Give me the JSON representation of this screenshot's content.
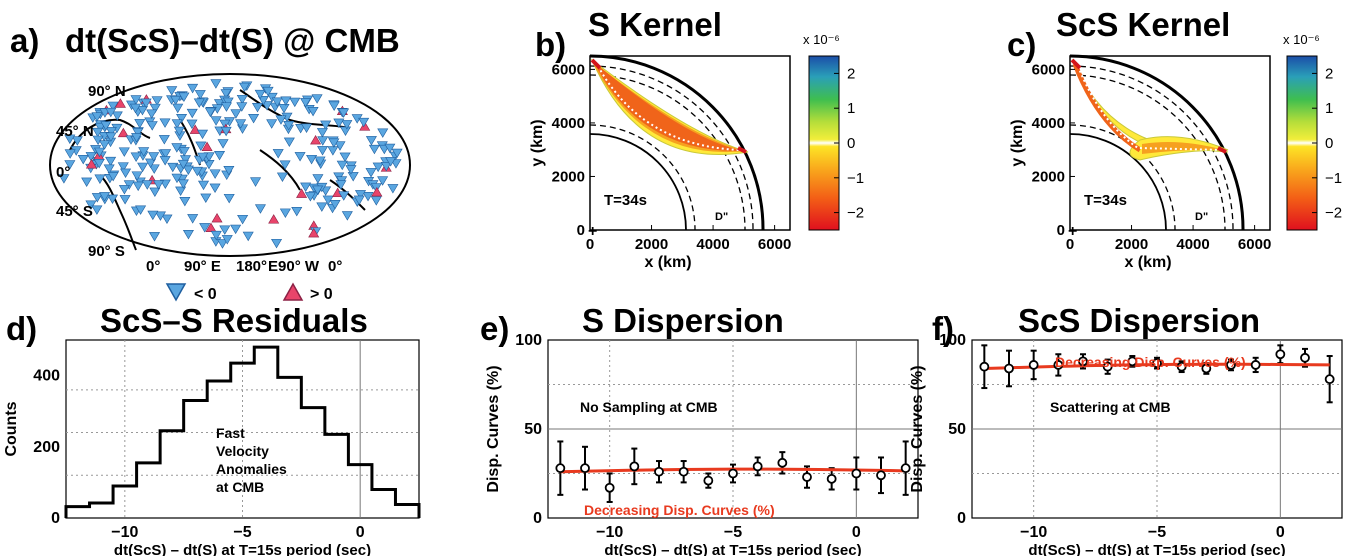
{
  "panels": {
    "a": {
      "letter": "a)",
      "title": "dt(ScS)–dt(S) @ CMB",
      "lat_labels": [
        "90° N",
        "45° N",
        "0°",
        "45° S",
        "90° S"
      ],
      "lon_labels": [
        "0°",
        "90° E",
        "180°",
        "E90° W",
        "0°"
      ],
      "legend_neg": "< 0",
      "legend_pos": "> 0"
    },
    "b": {
      "letter": "b)",
      "title": "S Kernel",
      "period_label": "T=34s",
      "layer_label": "D\"",
      "colorbar_ticks": [
        "2",
        "1",
        "0",
        "−1",
        "−2"
      ]
    },
    "c": {
      "letter": "c)",
      "title": "ScS Kernel",
      "period_label": "T=34s",
      "layer_label": "D\"",
      "colorbar_ticks": [
        "2",
        "1",
        "0",
        "−1",
        "−2"
      ]
    },
    "d": {
      "letter": "d)",
      "title": "ScS–S Residuals",
      "annotation": [
        "Fast",
        "Velocity",
        "Anomalies",
        "at CMB"
      ]
    },
    "e": {
      "letter": "e)",
      "title": "S Dispersion",
      "annotation_black": "No Sampling at CMB",
      "annotation_red": "Decreasing Disp. Curves (%)"
    },
    "f": {
      "letter": "f)",
      "title": "ScS Dispersion",
      "annotation_black": "Scattering at CMB",
      "annotation_red": "Decreasing Disp. Curves (%)"
    }
  },
  "colors": {
    "fast": "#5aa6e0",
    "slow": "#e8446a",
    "trend": "#e83a1f"
  },
  "chart_data": [
    {
      "type": "map",
      "panel": "a"
    },
    {
      "type": "heatmap",
      "panel": "b",
      "title": "S Kernel",
      "xlabel": "x (km)",
      "ylabel": "y (km)",
      "xticks": [
        "0",
        "2000",
        "4000",
        "6000"
      ],
      "yticks": [
        "0",
        "2000",
        "4000",
        "6000"
      ],
      "xlim": [
        0,
        6500
      ],
      "ylim": [
        0,
        6500
      ],
      "colorbar_scale": "x 10⁻⁶",
      "colorbar_range": [
        -2.5,
        2.5
      ]
    },
    {
      "type": "heatmap",
      "panel": "c",
      "title": "ScS Kernel",
      "xlabel": "x (km)",
      "ylabel": "y (km)",
      "xticks": [
        "0",
        "2000",
        "4000",
        "6000"
      ],
      "yticks": [
        "0",
        "2000",
        "4000",
        "6000"
      ],
      "xlim": [
        0,
        6500
      ],
      "ylim": [
        0,
        6500
      ],
      "colorbar_scale": "x 10⁻⁶",
      "colorbar_range": [
        -2.5,
        2.5
      ]
    },
    {
      "type": "bar",
      "panel": "d",
      "title": "ScS–S Residuals",
      "xlabel": "dt(ScS) – dt(S) at T=15s period (sec)",
      "ylabel": "Counts",
      "xlim": [
        -12.5,
        2.5
      ],
      "ylim": [
        0,
        500
      ],
      "xticks": [
        "−10",
        "−5",
        "0"
      ],
      "yticks": [
        "0",
        "200",
        "400"
      ],
      "bin_edges": [
        -12.5,
        -11.5,
        -10.5,
        -9.5,
        -8.5,
        -7.5,
        -6.5,
        -5.5,
        -4.5,
        -3.5,
        -2.5,
        -1.5,
        -0.5,
        0.5,
        1.5,
        2.5
      ],
      "values": [
        32,
        42,
        90,
        155,
        245,
        330,
        385,
        435,
        480,
        395,
        310,
        235,
        150,
        80,
        38
      ]
    },
    {
      "type": "scatter",
      "panel": "e",
      "title": "S Dispersion",
      "xlabel": "dt(ScS) – dt(S) at T=15s period (sec)",
      "ylabel": "Disp. Curves (%)",
      "xlim": [
        -12.5,
        2.5
      ],
      "ylim": [
        0,
        100
      ],
      "xticks": [
        "−10",
        "−5",
        "0"
      ],
      "yticks": [
        "0",
        "50",
        "100"
      ],
      "x": [
        -12,
        -11,
        -10,
        -9,
        -8,
        -7,
        -6,
        -5,
        -4,
        -3,
        -2,
        -1,
        0,
        1,
        2
      ],
      "y": [
        28,
        28,
        17,
        29,
        26,
        26,
        21,
        25,
        29,
        31,
        23,
        22,
        25,
        24,
        28
      ],
      "yerr": [
        15,
        12,
        8,
        10,
        6,
        6,
        4,
        5,
        5,
        6,
        6,
        6,
        9,
        10,
        15
      ],
      "trend": {
        "x": [
          -12,
          2
        ],
        "y": [
          26,
          26.5
        ]
      }
    },
    {
      "type": "scatter",
      "panel": "f",
      "title": "ScS Dispersion",
      "xlabel": "dt(ScS) – dt(S) at T=15s period (sec)",
      "ylabel": "Disp. Curves (%)",
      "xlim": [
        -12.5,
        2.5
      ],
      "ylim": [
        0,
        100
      ],
      "xticks": [
        "−10",
        "−5",
        "0"
      ],
      "yticks": [
        "0",
        "50",
        "100"
      ],
      "x": [
        -12,
        -11,
        -10,
        -9,
        -8,
        -7,
        -6,
        -5,
        -4,
        -3,
        -2,
        -1,
        0,
        1,
        2
      ],
      "y": [
        85,
        84,
        86,
        86,
        88,
        85,
        88,
        87,
        85,
        84,
        86,
        86,
        92,
        90,
        78
      ],
      "yerr": [
        12,
        10,
        8,
        6,
        4,
        4,
        3,
        3,
        3,
        3,
        3,
        4,
        5,
        5,
        13
      ],
      "trend": {
        "x": [
          -12,
          2
        ],
        "y": [
          84,
          86
        ]
      }
    }
  ]
}
